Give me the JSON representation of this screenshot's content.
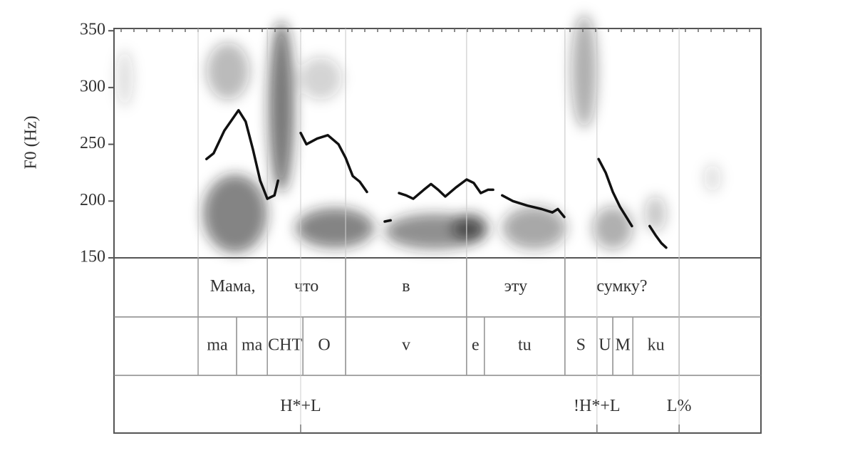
{
  "chart_data": {
    "type": "line",
    "y_label": "F0 (Hz)",
    "ylim": [
      150,
      352
    ],
    "yticks": [
      150,
      200,
      250,
      300,
      350
    ],
    "xlim": [
      0,
      2
    ],
    "series": [
      {
        "color": "#111111",
        "x": [
          0.286,
          0.308,
          0.341,
          0.385,
          0.407,
          0.43,
          0.452,
          0.474,
          0.496,
          0.507,
          null,
          0.577,
          0.595,
          0.628,
          0.661,
          0.694,
          0.716,
          0.738,
          0.76,
          0.782,
          null,
          0.837,
          0.855,
          null,
          0.881,
          0.903,
          0.925,
          0.958,
          0.98,
          1.002,
          1.024,
          1.057,
          1.09,
          1.112,
          1.134,
          1.156,
          1.172,
          null,
          1.2,
          1.233,
          1.278,
          1.322,
          1.355,
          1.372,
          1.392,
          null,
          1.498,
          1.52,
          1.542,
          1.564,
          1.586,
          1.601,
          null,
          1.656,
          1.674,
          1.692,
          1.707
        ],
        "values": [
          237,
          242,
          262,
          280,
          270,
          245,
          218,
          202,
          205,
          218,
          null,
          260,
          250,
          255,
          258,
          250,
          238,
          222,
          217,
          208,
          null,
          182,
          183,
          null,
          207,
          205,
          202,
          210,
          215,
          210,
          204,
          212,
          219,
          216,
          207,
          210,
          210,
          null,
          205,
          200,
          196,
          193,
          190,
          193,
          186,
          null,
          237,
          225,
          208,
          195,
          185,
          178,
          null,
          178,
          170,
          163,
          159
        ]
      }
    ],
    "tiers": [
      {
        "intervals": [
          {
            "label": "Мама,",
            "start": 0.26,
            "end": 0.474
          },
          {
            "label": "что",
            "start": 0.474,
            "end": 0.716
          },
          {
            "label": "в",
            "start": 0.716,
            "end": 1.09
          },
          {
            "label": "эту",
            "start": 1.09,
            "end": 1.394
          },
          {
            "label": "сумку?",
            "start": 1.394,
            "end": 1.747
          }
        ]
      },
      {
        "intervals": [
          {
            "label": "ma",
            "start": 0.26,
            "end": 0.379
          },
          {
            "label": "ma",
            "start": 0.379,
            "end": 0.474
          },
          {
            "label": "CHT",
            "start": 0.474,
            "end": 0.584
          },
          {
            "label": "O",
            "start": 0.584,
            "end": 0.716
          },
          {
            "label": "v",
            "start": 0.716,
            "end": 1.09
          },
          {
            "label": "e",
            "start": 1.09,
            "end": 1.145
          },
          {
            "label": "tu",
            "start": 1.145,
            "end": 1.394
          },
          {
            "label": "S",
            "start": 1.394,
            "end": 1.493
          },
          {
            "label": "U",
            "start": 1.493,
            "end": 1.542
          },
          {
            "label": "M",
            "start": 1.542,
            "end": 1.604
          },
          {
            "label": "ku",
            "start": 1.604,
            "end": 1.747
          }
        ]
      },
      {
        "points": [
          {
            "label": "H*+L",
            "time": 0.577
          },
          {
            "label": "!H*+L",
            "time": 1.493
          },
          {
            "label": "L%",
            "time": 1.747
          }
        ]
      }
    ]
  }
}
